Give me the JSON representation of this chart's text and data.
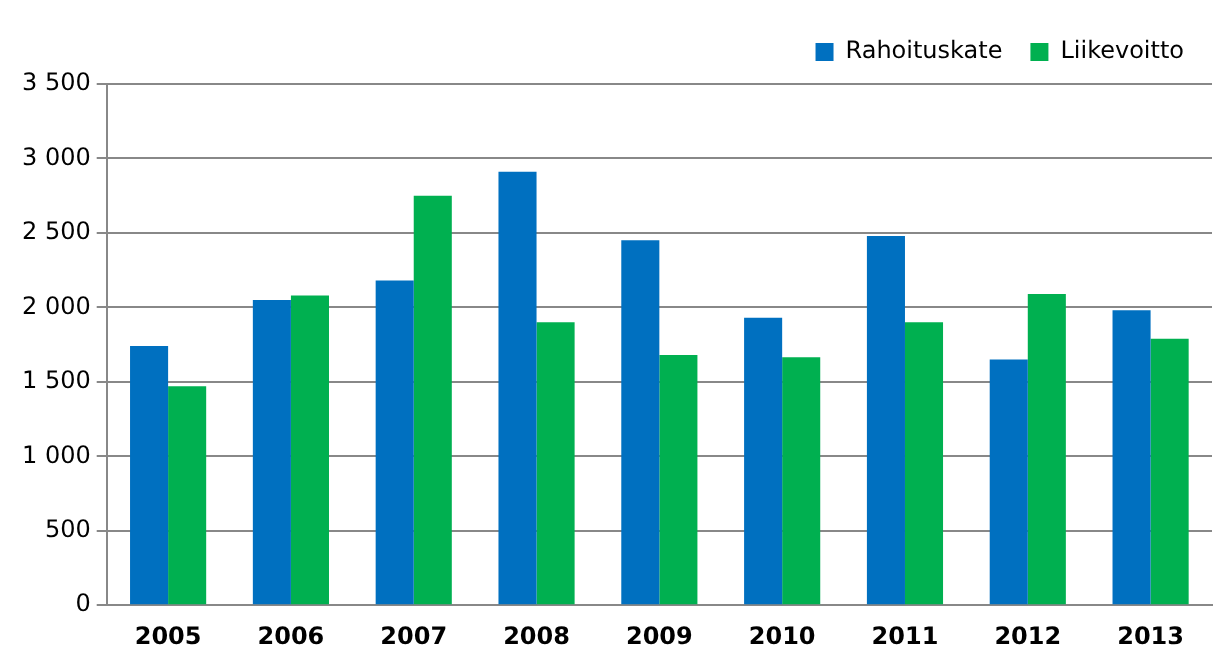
{
  "chart_data": {
    "type": "bar",
    "categories": [
      "2005",
      "2006",
      "2007",
      "2008",
      "2009",
      "2010",
      "2011",
      "2012",
      "2013"
    ],
    "series": [
      {
        "name": "Rahoituskate",
        "color": "#0070c0",
        "values": [
          1740,
          2050,
          2180,
          2910,
          2450,
          1930,
          2480,
          1650,
          1980
        ]
      },
      {
        "name": "Liikevoitto",
        "color": "#00b050",
        "values": [
          1470,
          2080,
          2750,
          1900,
          1680,
          1665,
          1900,
          2090,
          1790
        ]
      }
    ],
    "ylim": [
      0,
      3500
    ],
    "yticks": [
      0,
      500,
      {
        "value": 1000,
        "label": "1 000"
      },
      {
        "value": 1500,
        "label": "1 500"
      },
      {
        "value": 2000,
        "label": "2 000"
      },
      {
        "value": 2500,
        "label": "2 500"
      },
      {
        "value": 3000,
        "label": "3 000"
      },
      {
        "value": 3500,
        "label": "3 500"
      }
    ],
    "grid": "y",
    "legend": "top right"
  }
}
